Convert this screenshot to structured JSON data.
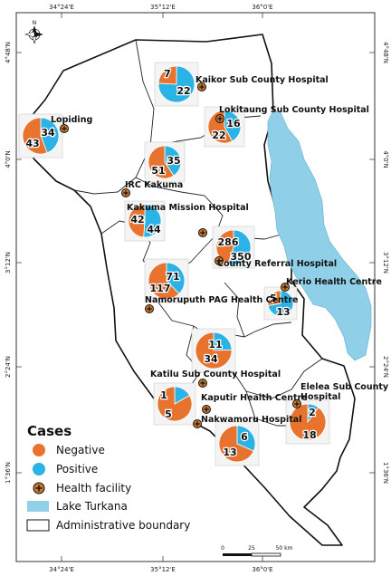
{
  "map": {
    "top_ticks": [
      "34°24'E",
      "35°12'E",
      "36°0'E"
    ],
    "bottom_ticks": [
      "34°24'E",
      "35°12'E",
      "36°0'E"
    ],
    "left_ticks": [
      "4°48'N",
      "4°0'N",
      "3°12'N",
      "2°24'N",
      "1°36'N"
    ],
    "right_ticks": [
      "4°48'N",
      "4°0'N",
      "3°12'N",
      "2°24'N",
      "1°36'N"
    ],
    "colors": {
      "negative": "#E8732F",
      "positive": "#2BB3E6",
      "lake": "#8FD0E8",
      "facility": "#C9782A"
    },
    "facilities": [
      {
        "name": "Kaikor Sub County Hospital",
        "negative": 7,
        "positive": 22
      },
      {
        "name": "Lokitaung Sub County Hospital",
        "negative": 22,
        "positive": 16
      },
      {
        "name": "Lopiding",
        "negative": 43,
        "positive": 34
      },
      {
        "name": "IRC Kakuma",
        "negative": 51,
        "positive": 35
      },
      {
        "name": "Kakuma Mission Hospital",
        "negative": 42,
        "positive": 44
      },
      {
        "name": "County Referral Hospital",
        "negative": 286,
        "positive": 350
      },
      {
        "name": "Namoruputh PAG Health Centre",
        "negative": 117,
        "positive": 71
      },
      {
        "name": "Kerio Health Centre",
        "negative": 5,
        "positive": 13
      },
      {
        "name": "Katilu Sub County Hospital",
        "negative": 34,
        "positive": 11
      },
      {
        "name": "Kaputir Health Centre",
        "negative": 5,
        "positive": 1
      },
      {
        "name": "Nakwamoru Hospital",
        "negative": 13,
        "positive": 6
      },
      {
        "name": "Elelea Sub County Hospital",
        "negative": 18,
        "positive": 2
      }
    ],
    "north_arrow": "N",
    "legend": {
      "title": "Cases",
      "negative": "Negative",
      "positive": "Positive",
      "facility": "Health facility",
      "lake": "Lake Turkana",
      "boundary": "Administrative boundary"
    },
    "scalebar": {
      "labels": [
        "0",
        "25",
        "50 km"
      ]
    }
  }
}
